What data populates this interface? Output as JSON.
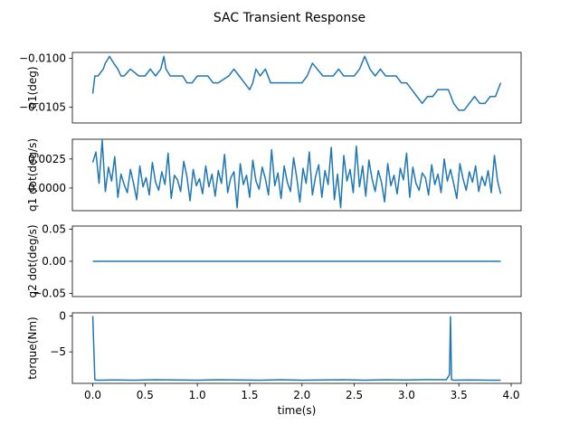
{
  "figure": {
    "title": "SAC Transient Response",
    "background": "#ffffff",
    "line_color": "#1f77b4"
  },
  "chart_data": [
    {
      "type": "line",
      "ylabel": "q1(deg)",
      "xlabel": "",
      "xlim": [
        -0.195,
        4.095
      ],
      "ylim": [
        -0.01066,
        -0.00994
      ],
      "x_ticks": [],
      "y_ticks": [
        -0.01,
        -0.0105
      ],
      "y_tick_labels": [
        "−0.0100",
        "−0.0105"
      ],
      "grid": false,
      "series": [
        {
          "x": [
            0.0,
            0.02,
            0.05,
            0.1,
            0.12,
            0.16,
            0.2,
            0.24,
            0.27,
            0.3,
            0.36,
            0.44,
            0.5,
            0.55,
            0.6,
            0.65,
            0.68,
            0.7,
            0.74,
            0.8,
            0.86,
            0.9,
            0.95,
            1.0,
            1.05,
            1.1,
            1.15,
            1.2,
            1.3,
            1.35,
            1.4,
            1.45,
            1.5,
            1.53,
            1.56,
            1.6,
            1.65,
            1.7,
            1.8,
            1.9,
            2.0,
            2.05,
            2.1,
            2.2,
            2.3,
            2.35,
            2.4,
            2.45,
            2.5,
            2.55,
            2.6,
            2.65,
            2.7,
            2.75,
            2.8,
            2.9,
            2.95,
            3.0,
            3.05,
            3.1,
            3.15,
            3.2,
            3.25,
            3.3,
            3.35,
            3.4,
            3.45,
            3.5,
            3.55,
            3.6,
            3.65,
            3.7,
            3.75,
            3.8,
            3.85,
            3.9
          ],
          "y": [
            -0.01036,
            -0.01018,
            -0.01018,
            -0.01011,
            -0.01005,
            -0.00998,
            -0.01005,
            -0.01011,
            -0.01018,
            -0.01018,
            -0.01011,
            -0.01018,
            -0.01018,
            -0.01011,
            -0.01018,
            -0.01011,
            -0.00998,
            -0.01011,
            -0.01018,
            -0.01018,
            -0.01018,
            -0.01025,
            -0.01025,
            -0.01018,
            -0.01018,
            -0.01018,
            -0.01025,
            -0.01025,
            -0.01018,
            -0.01011,
            -0.01018,
            -0.01025,
            -0.01032,
            -0.01025,
            -0.01011,
            -0.01018,
            -0.01011,
            -0.01025,
            -0.01025,
            -0.01025,
            -0.01025,
            -0.01018,
            -0.01005,
            -0.01018,
            -0.01018,
            -0.01011,
            -0.01018,
            -0.01018,
            -0.01018,
            -0.01011,
            -0.00998,
            -0.01011,
            -0.01018,
            -0.01011,
            -0.01018,
            -0.01018,
            -0.01025,
            -0.01025,
            -0.01032,
            -0.01039,
            -0.01046,
            -0.01039,
            -0.01039,
            -0.01032,
            -0.01032,
            -0.01032,
            -0.01046,
            -0.01053,
            -0.01053,
            -0.01046,
            -0.01039,
            -0.01046,
            -0.01046,
            -0.01039,
            -0.01039,
            -0.01025
          ]
        }
      ]
    },
    {
      "type": "line",
      "ylabel": "q1 dot(deg/s)",
      "xlabel": "",
      "xlim": [
        -0.195,
        4.095
      ],
      "ylim": [
        -0.00195,
        0.0042
      ],
      "x_ticks": [],
      "y_ticks": [
        0.0,
        0.0025
      ],
      "y_tick_labels": [
        "0.0000",
        "0.0025"
      ],
      "grid": false,
      "series": [
        {
          "x": [
            0.0,
            0.03,
            0.06,
            0.09,
            0.12,
            0.15,
            0.18,
            0.21,
            0.24,
            0.27,
            0.3,
            0.33,
            0.36,
            0.39,
            0.42,
            0.45,
            0.48,
            0.51,
            0.54,
            0.57,
            0.6,
            0.63,
            0.66,
            0.69,
            0.72,
            0.75,
            0.78,
            0.81,
            0.84,
            0.87,
            0.9,
            0.93,
            0.96,
            0.99,
            1.02,
            1.05,
            1.08,
            1.11,
            1.14,
            1.17,
            1.2,
            1.23,
            1.26,
            1.29,
            1.32,
            1.35,
            1.38,
            1.41,
            1.44,
            1.47,
            1.5,
            1.53,
            1.56,
            1.59,
            1.62,
            1.65,
            1.68,
            1.71,
            1.74,
            1.77,
            1.8,
            1.83,
            1.86,
            1.89,
            1.92,
            1.95,
            1.98,
            2.01,
            2.04,
            2.07,
            2.1,
            2.13,
            2.16,
            2.19,
            2.22,
            2.25,
            2.28,
            2.31,
            2.34,
            2.37,
            2.4,
            2.43,
            2.46,
            2.49,
            2.52,
            2.55,
            2.58,
            2.61,
            2.64,
            2.67,
            2.7,
            2.73,
            2.76,
            2.79,
            2.82,
            2.85,
            2.88,
            2.91,
            2.94,
            2.97,
            3.0,
            3.03,
            3.06,
            3.09,
            3.12,
            3.15,
            3.18,
            3.21,
            3.24,
            3.27,
            3.3,
            3.33,
            3.36,
            3.39,
            3.42,
            3.45,
            3.48,
            3.51,
            3.54,
            3.57,
            3.6,
            3.63,
            3.66,
            3.69,
            3.72,
            3.75,
            3.78,
            3.81,
            3.84,
            3.87,
            3.9
          ],
          "y": [
            0.0022,
            0.0031,
            0.0004,
            0.0041,
            -0.0003,
            0.0018,
            0.0006,
            0.0027,
            -0.0008,
            0.0012,
            0.0003,
            -0.0004,
            0.0016,
            0.0004,
            -0.001,
            0.0019,
            0.0001,
            0.0009,
            -0.0006,
            0.0022,
            0.0005,
            -0.0002,
            0.0014,
            0.0003,
            0.003,
            -0.0009,
            0.0011,
            0.0007,
            -0.0003,
            0.0023,
            0.001,
            -0.0011,
            0.0016,
            0.0002,
            0.0008,
            -0.0005,
            0.0019,
            0.0001,
            0.0012,
            -0.0007,
            0.0015,
            0.0004,
            0.0029,
            -0.0004,
            0.0009,
            0.0014,
            -0.0017,
            0.0021,
            0.0003,
            0.0011,
            -0.0008,
            0.0024,
            0.0006,
            -0.0001,
            0.0018,
            0.0008,
            -0.0006,
            0.0033,
            0.0002,
            0.0013,
            -0.0009,
            0.0019,
            0.0005,
            -0.0003,
            0.0026,
            0.0009,
            -0.0012,
            0.0017,
            0.0004,
            0.0031,
            -0.0006,
            0.001,
            0.002,
            -0.0008,
            0.0015,
            0.0003,
            0.0035,
            -0.001,
            0.0012,
            -0.0017,
            0.0028,
            0.0006,
            0.0016,
            -0.0004,
            0.0036,
            0.0001,
            0.0019,
            -0.0007,
            0.0024,
            0.0008,
            -0.0003,
            0.0015,
            0.0005,
            -0.0012,
            0.0021,
            0.0002,
            0.0011,
            -0.0005,
            0.0017,
            0.0007,
            0.003,
            -0.0008,
            0.0018,
            0.0004,
            -0.0002,
            0.0013,
            0.0009,
            -0.0006,
            0.002,
            0.0003,
            0.0012,
            -0.0004,
            0.0025,
            0.0006,
            0.0016,
            0.0004,
            -0.0009,
            0.0021,
            0.0008,
            -0.0002,
            0.0014,
            0.0005,
            0.0019,
            -0.0003,
            0.001,
            0.0002,
            0.0015,
            -0.0004,
            0.0028,
            0.0006,
            -0.0005
          ]
        }
      ]
    },
    {
      "type": "line",
      "ylabel": "q2 dot(deg/s)",
      "xlabel": "",
      "xlim": [
        -0.195,
        4.095
      ],
      "ylim": [
        -0.055,
        0.055
      ],
      "x_ticks": [],
      "y_ticks": [
        -0.05,
        0.0,
        0.05
      ],
      "y_tick_labels": [
        "−0.05",
        "0.00",
        "0.05"
      ],
      "grid": false,
      "series": [
        {
          "x": [
            0.0,
            3.9
          ],
          "y": [
            0.0,
            0.0
          ]
        }
      ]
    },
    {
      "type": "line",
      "ylabel": "torque(Nm)",
      "xlabel": "time(s)",
      "xlim": [
        -0.195,
        4.095
      ],
      "ylim": [
        -9.4,
        0.45
      ],
      "x_ticks": [
        0.0,
        0.5,
        1.0,
        1.5,
        2.0,
        2.5,
        3.0,
        3.5,
        4.0
      ],
      "x_tick_labels": [
        "0.0",
        "0.5",
        "1.0",
        "1.5",
        "2.0",
        "2.5",
        "3.0",
        "3.5",
        "4.0"
      ],
      "y_ticks": [
        0,
        -5
      ],
      "y_tick_labels": [
        "0",
        "−5"
      ],
      "grid": false,
      "series": [
        {
          "x": [
            0.0,
            0.02,
            0.04,
            0.2,
            0.4,
            0.6,
            0.8,
            1.0,
            1.2,
            1.4,
            1.6,
            1.8,
            2.0,
            2.2,
            2.4,
            2.6,
            2.8,
            3.0,
            3.2,
            3.38,
            3.41,
            3.42,
            3.43,
            3.45,
            3.6,
            3.8,
            3.9
          ],
          "y": [
            0.0,
            -8.9,
            -8.95,
            -8.92,
            -8.95,
            -8.9,
            -8.93,
            -8.95,
            -8.9,
            -8.92,
            -8.95,
            -8.9,
            -8.95,
            -8.92,
            -8.9,
            -8.95,
            -8.9,
            -8.92,
            -8.88,
            -8.9,
            -8.2,
            -0.1,
            -8.9,
            -8.95,
            -8.92,
            -8.95,
            -8.95
          ]
        }
      ]
    }
  ]
}
